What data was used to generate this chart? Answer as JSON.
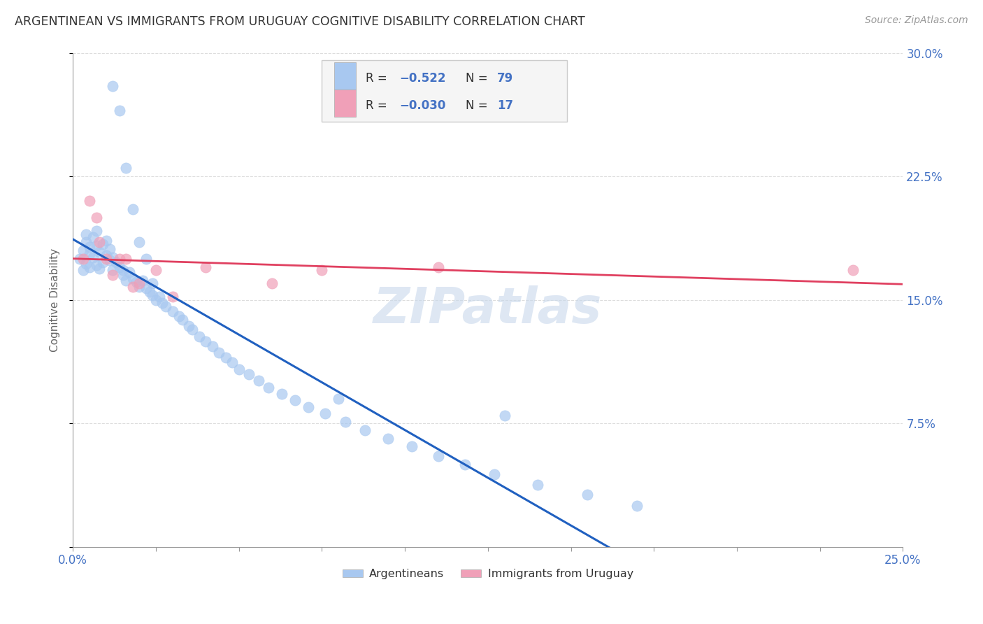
{
  "title": "ARGENTINEAN VS IMMIGRANTS FROM URUGUAY COGNITIVE DISABILITY CORRELATION CHART",
  "source": "Source: ZipAtlas.com",
  "ylabel": "Cognitive Disability",
  "xlim": [
    0.0,
    0.25
  ],
  "ylim": [
    0.0,
    0.3
  ],
  "xtick_positions": [
    0.0,
    0.025,
    0.05,
    0.075,
    0.1,
    0.125,
    0.15,
    0.175,
    0.2,
    0.225,
    0.25
  ],
  "xtick_labels": [
    "0.0%",
    "",
    "",
    "",
    "",
    "",
    "",
    "",
    "",
    "",
    "25.0%"
  ],
  "ytick_positions": [
    0.0,
    0.075,
    0.15,
    0.225,
    0.3
  ],
  "ytick_labels": [
    "",
    "7.5%",
    "15.0%",
    "22.5%",
    "30.0%"
  ],
  "blue_color": "#A8C8F0",
  "pink_color": "#F0A0B8",
  "blue_line_color": "#2060C0",
  "pink_line_color": "#E04060",
  "text_color": "#4472C4",
  "watermark_color": "#C8D8EC",
  "legend_box_color": "#F5F5F5",
  "legend_edge_color": "#CCCCCC",
  "grid_color": "#DDDDDD",
  "spine_color": "#999999",
  "argentinean_x": [
    0.002,
    0.003,
    0.003,
    0.004,
    0.004,
    0.004,
    0.005,
    0.005,
    0.005,
    0.006,
    0.006,
    0.007,
    0.007,
    0.007,
    0.008,
    0.008,
    0.009,
    0.009,
    0.01,
    0.01,
    0.011,
    0.011,
    0.012,
    0.012,
    0.013,
    0.014,
    0.015,
    0.015,
    0.016,
    0.017,
    0.018,
    0.019,
    0.02,
    0.021,
    0.022,
    0.023,
    0.024,
    0.025,
    0.026,
    0.027,
    0.028,
    0.03,
    0.032,
    0.033,
    0.035,
    0.036,
    0.038,
    0.04,
    0.042,
    0.044,
    0.046,
    0.048,
    0.05,
    0.053,
    0.056,
    0.059,
    0.063,
    0.067,
    0.071,
    0.076,
    0.082,
    0.088,
    0.095,
    0.102,
    0.11,
    0.118,
    0.127,
    0.14,
    0.155,
    0.17,
    0.012,
    0.014,
    0.016,
    0.018,
    0.02,
    0.022,
    0.024,
    0.08,
    0.13
  ],
  "argentinean_y": [
    0.175,
    0.18,
    0.168,
    0.185,
    0.172,
    0.19,
    0.178,
    0.182,
    0.17,
    0.188,
    0.176,
    0.183,
    0.171,
    0.192,
    0.179,
    0.169,
    0.184,
    0.173,
    0.177,
    0.186,
    0.174,
    0.181,
    0.176,
    0.168,
    0.173,
    0.17,
    0.168,
    0.165,
    0.162,
    0.167,
    0.163,
    0.161,
    0.158,
    0.162,
    0.157,
    0.155,
    0.153,
    0.15,
    0.152,
    0.148,
    0.146,
    0.143,
    0.14,
    0.138,
    0.134,
    0.132,
    0.128,
    0.125,
    0.122,
    0.118,
    0.115,
    0.112,
    0.108,
    0.105,
    0.101,
    0.097,
    0.093,
    0.089,
    0.085,
    0.081,
    0.076,
    0.071,
    0.066,
    0.061,
    0.055,
    0.05,
    0.044,
    0.038,
    0.032,
    0.025,
    0.28,
    0.265,
    0.23,
    0.205,
    0.185,
    0.175,
    0.16,
    0.09,
    0.08
  ],
  "uruguay_x": [
    0.003,
    0.005,
    0.007,
    0.008,
    0.01,
    0.012,
    0.014,
    0.016,
    0.018,
    0.02,
    0.025,
    0.03,
    0.04,
    0.06,
    0.075,
    0.11,
    0.235
  ],
  "uruguay_y": [
    0.175,
    0.21,
    0.2,
    0.185,
    0.175,
    0.165,
    0.175,
    0.175,
    0.158,
    0.16,
    0.168,
    0.152,
    0.17,
    0.16,
    0.168,
    0.17,
    0.168
  ]
}
